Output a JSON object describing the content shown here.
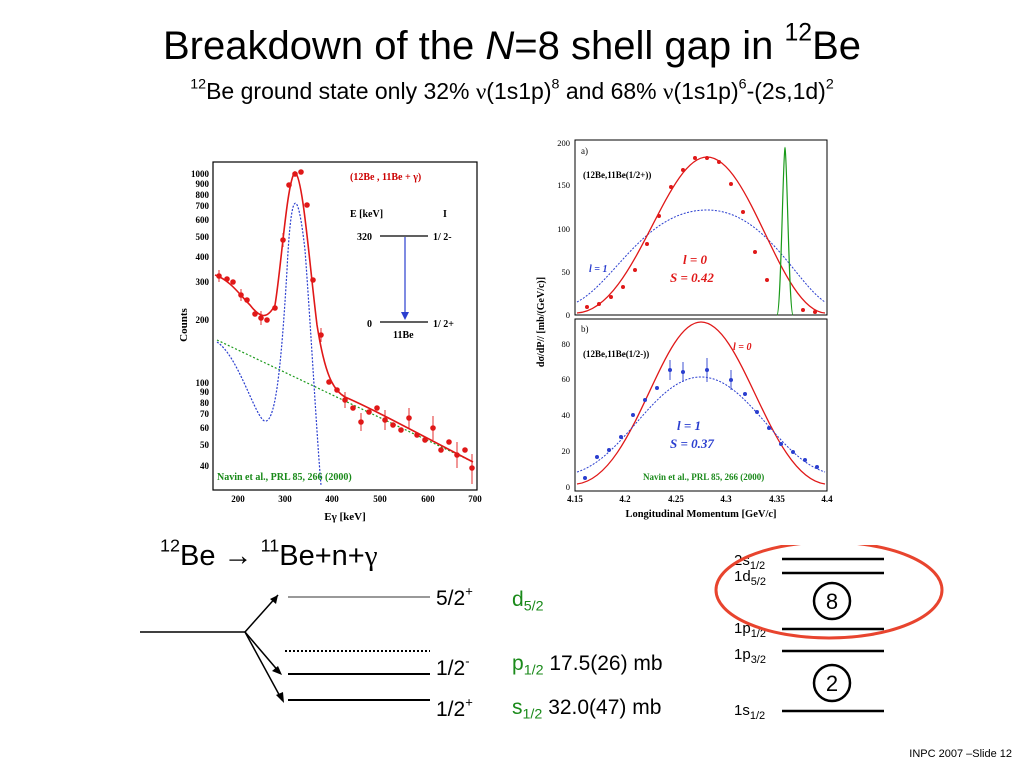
{
  "title": {
    "prefix": "Breakdown of the ",
    "italic": "N",
    "middle": "=8 shell gap in ",
    "sup": "12",
    "suffix": "Be"
  },
  "subtitle": {
    "sup1": "12",
    "t1": "Be ground state only 32% ",
    "nu1": "ν",
    "t2": "(1s1p)",
    "sup2": "8",
    "t3": " and 68% ",
    "nu2": "ν",
    "t4": "(1s1p)",
    "sup3": "6",
    "t5": "-(2s,1d)",
    "sup4": "2"
  },
  "left_plot": {
    "ylabel": "Counts",
    "xlabel": "Eγ [keV]",
    "xticks": [
      "200",
      "300",
      "400",
      "500",
      "600",
      "700"
    ],
    "yticks": [
      "1000",
      "900",
      "800",
      "700",
      "600",
      "500",
      "400",
      "300",
      "200",
      "100",
      "90",
      "80",
      "70",
      "60",
      "50",
      "40"
    ],
    "legend": "(12Be , 11Be + γ)",
    "inset": {
      "col1": "E [keV]",
      "col2": "I",
      "e1": "320",
      "i1": "1/ 2-",
      "e2": "0",
      "i2": "1/ 2+",
      "nucleus": "11Be"
    },
    "citation": "Navin et al., PRL 85, 266 (2000)"
  },
  "right_plot": {
    "ylabel": "dσ/dP// [mb/(GeV/c)]",
    "xlabel": "Longitudinal Momentum [GeV/c]",
    "xticks": [
      "4.15",
      "4.2",
      "4.25",
      "4.3",
      "4.35",
      "4.4"
    ],
    "top": {
      "panel": "a)",
      "label": "(12Be,11Be(1/2+))",
      "yticks": [
        "200",
        "150",
        "100",
        "50",
        "0"
      ],
      "l_blue": "l = 1",
      "l_red": "l = 0",
      "s_red": "S = 0.42"
    },
    "bottom": {
      "panel": "b)",
      "label": "(12Be,11Be(1/2-))",
      "yticks": [
        "80",
        "60",
        "40",
        "20",
        "0"
      ],
      "l_red": "l = 0",
      "l_blue": "l = 1",
      "s_blue": "S = 0.37"
    },
    "citation": "Navin et al., PRL 85, 266 (2000)"
  },
  "reaction": {
    "sup1": "12",
    "a": "Be  ",
    "arrow": "→",
    "sup2": "11",
    "b": "Be+n+",
    "gamma": "γ"
  },
  "levels": [
    {
      "jpi": "5/2",
      "parity": "+",
      "orbital": "d",
      "sub": "5/2",
      "xs": ""
    },
    {
      "jpi": "1/2",
      "parity": "-",
      "orbital": "p",
      "sub": "1/2",
      "xs": "17.5(26) mb"
    },
    {
      "jpi": "1/2",
      "parity": "+",
      "orbital": "s",
      "sub": "1/2",
      "xs": "32.0(47) mb"
    }
  ],
  "shell": {
    "l1": "2s",
    "l1s": "1/2",
    "l2": "1d",
    "l2s": "5/2",
    "l3": "1p",
    "l3s": "1/2",
    "l4": "1p",
    "l4s": "3/2",
    "l5": "1s",
    "l5s": "1/2",
    "gap8": "8",
    "gap2": "2",
    "highlight_color": "#e8442e"
  },
  "footer": "INPC 2007 –Slide 12"
}
